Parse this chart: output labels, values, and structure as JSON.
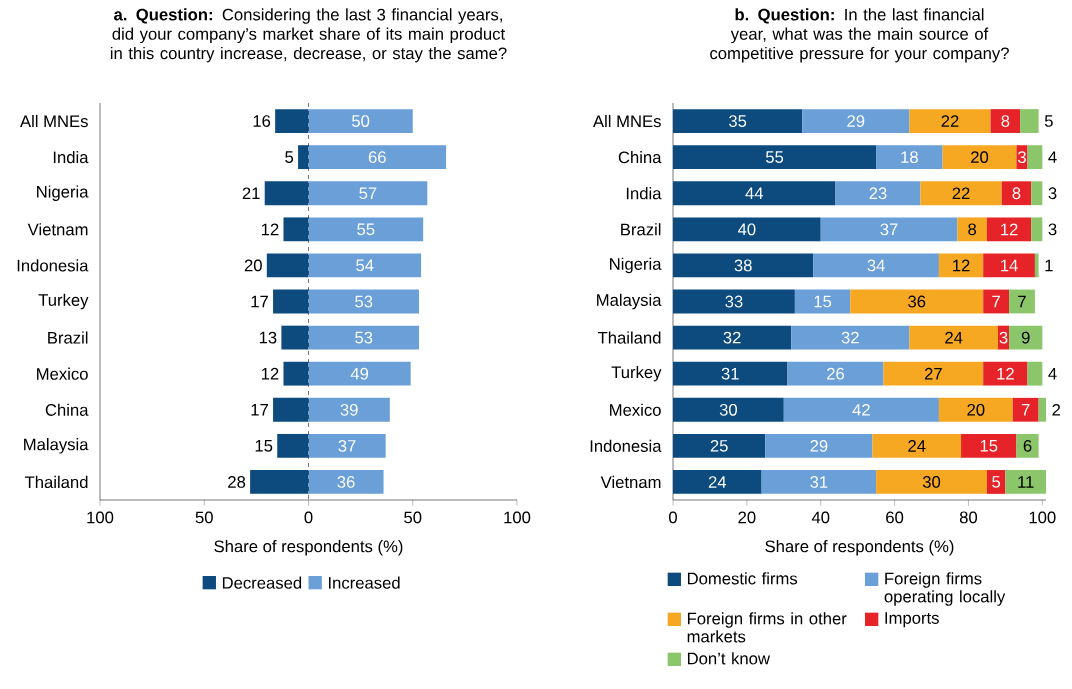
{
  "chart_data": [
    {
      "type": "bar",
      "orientation": "horizontal",
      "data_labels": true,
      "title": "**a. Question:** Considering the last 3 financial years, did your company’s market share of its main product in this country increase, decrease, or stay the same?",
      "xlabel": "Share of respondents (%)",
      "categories": [
        "All MNEs",
        "India",
        "Nigeria",
        "Vietnam",
        "Indonesia",
        "Turkey",
        "Brazil",
        "Mexico",
        "China",
        "Malaysia",
        "Thailand"
      ],
      "series": [
        {
          "name": "Decreased",
          "color": "#0d4a7e",
          "values": [
            16,
            5,
            21,
            12,
            20,
            17,
            13,
            12,
            17,
            15,
            28
          ],
          "base": [
            -16,
            -5,
            -21,
            -12,
            -20,
            -17,
            -13,
            -12,
            -17,
            -15,
            -28
          ]
        },
        {
          "name": "Increased",
          "color": "#6a9fd8",
          "values": [
            50,
            66,
            57,
            55,
            54,
            53,
            53,
            49,
            39,
            37,
            36
          ]
        }
      ],
      "xlim": [
        -100,
        100
      ],
      "xticks": [
        {
          "value": -100,
          "label": "100"
        },
        {
          "value": -50,
          "label": "50"
        },
        0,
        50,
        100
      ],
      "ref_lines": [
        {
          "axis": "x",
          "value": 0,
          "line_style": "dashed"
        }
      ],
      "legend": "bottom",
      "grid": false
    },
    {
      "type": "bar",
      "orientation": "horizontal",
      "stacked": true,
      "title": "**b. Question:** In the last financial year, what was the main source of competitive pressure for your company?",
      "xlabel": "Share of respondents (%)",
      "categories": [
        "All MNEs",
        "China",
        "India",
        "Brazil",
        "Nigeria",
        "Malaysia",
        "Thailand",
        "Turkey",
        "Mexico",
        "Indonesia",
        "Vietnam"
      ],
      "series": [
        {
          "name": "Domestic firms",
          "color": "#0d4a7e",
          "values": [
            35,
            55,
            44,
            40,
            38,
            33,
            32,
            31,
            30,
            25,
            24
          ]
        },
        {
          "name": "Foreign firms operating locally",
          "color": "#6a9fd8",
          "values": [
            29,
            18,
            23,
            37,
            34,
            15,
            32,
            26,
            42,
            29,
            31
          ]
        },
        {
          "name": "Foreign firms in other markets",
          "color": "#f7a823",
          "values": [
            22,
            20,
            22,
            8,
            12,
            36,
            24,
            27,
            20,
            24,
            30
          ]
        },
        {
          "name": "Imports",
          "color": "#e52328",
          "values": [
            8,
            3,
            8,
            12,
            14,
            7,
            3,
            12,
            7,
            15,
            5
          ]
        },
        {
          "name": "Don’t know",
          "color": "#8cc66a",
          "values": [
            5,
            4,
            3,
            3,
            1,
            7,
            9,
            4,
            2,
            6,
            11
          ]
        }
      ],
      "xlim": [
        0,
        101
      ],
      "xticks": [
        0,
        20,
        40,
        60,
        80,
        100
      ],
      "data_labels": true,
      "legend": "bottom",
      "grid": false
    }
  ]
}
